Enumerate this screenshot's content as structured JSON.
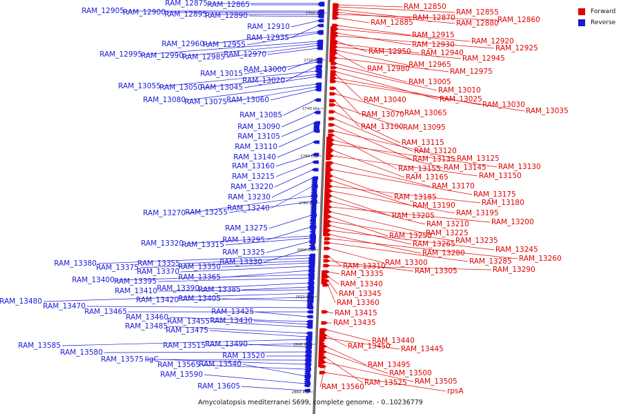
{
  "legend": {
    "forward": {
      "label": "Forward",
      "color": "#e00000"
    },
    "reverse": {
      "label": "Reverse",
      "color": "#1818d8"
    }
  },
  "caption": "Amycolatopsis mediterranei S699, complete genome. - 0..10236779",
  "ticks": [
    "2700 kbp",
    "2720 kbp",
    "2740 kbp",
    "2760 kbp",
    "2780 kbp",
    "2800 kbp",
    "2820 kbp",
    "2840 kbp",
    "2860 kbp"
  ],
  "reverse_labels": [
    {
      "text": "RAM_12875"
    },
    {
      "text": "RAM_12865"
    },
    {
      "text": "RAM_12905"
    },
    {
      "text": "RAM_12900"
    },
    {
      "text": "RAM_12895"
    },
    {
      "text": "RAM_12890"
    },
    {
      "text": "RAM_12910"
    },
    {
      "text": "RAM_12935"
    },
    {
      "text": "RAM_12960"
    },
    {
      "text": "RAM_12955"
    },
    {
      "text": "RAM_12995"
    },
    {
      "text": "RAM_12990"
    },
    {
      "text": "RAM_12985"
    },
    {
      "text": "RAM_12970"
    },
    {
      "text": "RAM_13000"
    },
    {
      "text": "RAM_13015"
    },
    {
      "text": "RAM_13020"
    },
    {
      "text": "RAM_13055"
    },
    {
      "text": "RAM_13050"
    },
    {
      "text": "RAM_13045"
    },
    {
      "text": "RAM_13080"
    },
    {
      "text": "RAM_13075"
    },
    {
      "text": "RAM_13060"
    },
    {
      "text": "RAM_13085"
    },
    {
      "text": "RAM_13090"
    },
    {
      "text": "RAM_13105"
    },
    {
      "text": "RAM_13110"
    },
    {
      "text": "RAM_13140"
    },
    {
      "text": "RAM_13160"
    },
    {
      "text": "RAM_13215"
    },
    {
      "text": "RAM_13220"
    },
    {
      "text": "RAM_13230"
    },
    {
      "text": "RAM_13240"
    },
    {
      "text": "RAM_13270"
    },
    {
      "text": "RAM_13255"
    },
    {
      "text": "RAM_13275"
    },
    {
      "text": "RAM_13295"
    },
    {
      "text": "RAM_13320"
    },
    {
      "text": "RAM_13315"
    },
    {
      "text": "RAM_13325"
    },
    {
      "text": "RAM_13330"
    },
    {
      "text": "RAM_13380"
    },
    {
      "text": "RAM_13355"
    },
    {
      "text": "RAM_13375"
    },
    {
      "text": "RAM_13350"
    },
    {
      "text": "RAM_13370"
    },
    {
      "text": "RAM_13365"
    },
    {
      "text": "RAM_13400"
    },
    {
      "text": "RAM_13395"
    },
    {
      "text": "RAM_13390"
    },
    {
      "text": "RAM_13385"
    },
    {
      "text": "RAM_13410"
    },
    {
      "text": "RAM_13480"
    },
    {
      "text": "RAM_13420"
    },
    {
      "text": "RAM_13405"
    },
    {
      "text": "RAM_13470"
    },
    {
      "text": "RAM_13465"
    },
    {
      "text": "RAM_13425"
    },
    {
      "text": "RAM_13460"
    },
    {
      "text": "RAM_13430"
    },
    {
      "text": "RAM_13455"
    },
    {
      "text": "RAM_13485"
    },
    {
      "text": "RAM_13475"
    },
    {
      "text": "RAM_13585"
    },
    {
      "text": "RAM_13515"
    },
    {
      "text": "RAM_13490"
    },
    {
      "text": "RAM_13580"
    },
    {
      "text": "RAM_13520"
    },
    {
      "text": "RAM_13575"
    },
    {
      "text": "ligC"
    },
    {
      "text": "RAM_13565"
    },
    {
      "text": "RAM_13540"
    },
    {
      "text": "RAM_13590"
    },
    {
      "text": "RAM_13605"
    }
  ],
  "forward_labels": [
    {
      "text": "RAM_12850"
    },
    {
      "text": "RAM_12855"
    },
    {
      "text": "RAM_12870"
    },
    {
      "text": "RAM_12880"
    },
    {
      "text": "RAM_12860"
    },
    {
      "text": "RAM_12885"
    },
    {
      "text": "RAM_12915"
    },
    {
      "text": "RAM_12920"
    },
    {
      "text": "RAM_12930"
    },
    {
      "text": "RAM_12925"
    },
    {
      "text": "RAM_12950"
    },
    {
      "text": "RAM_12940"
    },
    {
      "text": "RAM_12945"
    },
    {
      "text": "RAM_12965"
    },
    {
      "text": "RAM_12980"
    },
    {
      "text": "RAM_12975"
    },
    {
      "text": "RAM_13005"
    },
    {
      "text": "RAM_13010"
    },
    {
      "text": "RAM_13025"
    },
    {
      "text": "RAM_13040"
    },
    {
      "text": "RAM_13030"
    },
    {
      "text": "RAM_13035"
    },
    {
      "text": "RAM_13070"
    },
    {
      "text": "RAM_13065"
    },
    {
      "text": "RAM_13100"
    },
    {
      "text": "RAM_13095"
    },
    {
      "text": "RAM_13115"
    },
    {
      "text": "RAM_13120"
    },
    {
      "text": "RAM_13135"
    },
    {
      "text": "RAM_13125"
    },
    {
      "text": "RAM_13155"
    },
    {
      "text": "RAM_13145"
    },
    {
      "text": "RAM_13130"
    },
    {
      "text": "RAM_13165"
    },
    {
      "text": "RAM_13150"
    },
    {
      "text": "RAM_13170"
    },
    {
      "text": "RAM_13175"
    },
    {
      "text": "RAM_13185"
    },
    {
      "text": "RAM_13190"
    },
    {
      "text": "RAM_13180"
    },
    {
      "text": "RAM_13195"
    },
    {
      "text": "RAM_13205"
    },
    {
      "text": "RAM_13210"
    },
    {
      "text": "RAM_13200"
    },
    {
      "text": "RAM_13225"
    },
    {
      "text": "RAM_13250"
    },
    {
      "text": "RAM_13235"
    },
    {
      "text": "RAM_13265"
    },
    {
      "text": "RAM_13245"
    },
    {
      "text": "RAM_13280"
    },
    {
      "text": "RAM_13260"
    },
    {
      "text": "RAM_13285"
    },
    {
      "text": "RAM_13300"
    },
    {
      "text": "RAM_13310"
    },
    {
      "text": "RAM_13305"
    },
    {
      "text": "RAM_13290"
    },
    {
      "text": "RAM_13335"
    },
    {
      "text": "RAM_13340"
    },
    {
      "text": "RAM_13345"
    },
    {
      "text": "RAM_13360"
    },
    {
      "text": "RAM_13415"
    },
    {
      "text": "RAM_13435"
    },
    {
      "text": "RAM_13440"
    },
    {
      "text": "RAM_13450"
    },
    {
      "text": "RAM_13445"
    },
    {
      "text": "RAM_13495"
    },
    {
      "text": "RAM_13500"
    },
    {
      "text": "RAM_13525"
    },
    {
      "text": "RAM_13505"
    },
    {
      "text": "RAM_13560"
    },
    {
      "text": "rpsA"
    }
  ]
}
